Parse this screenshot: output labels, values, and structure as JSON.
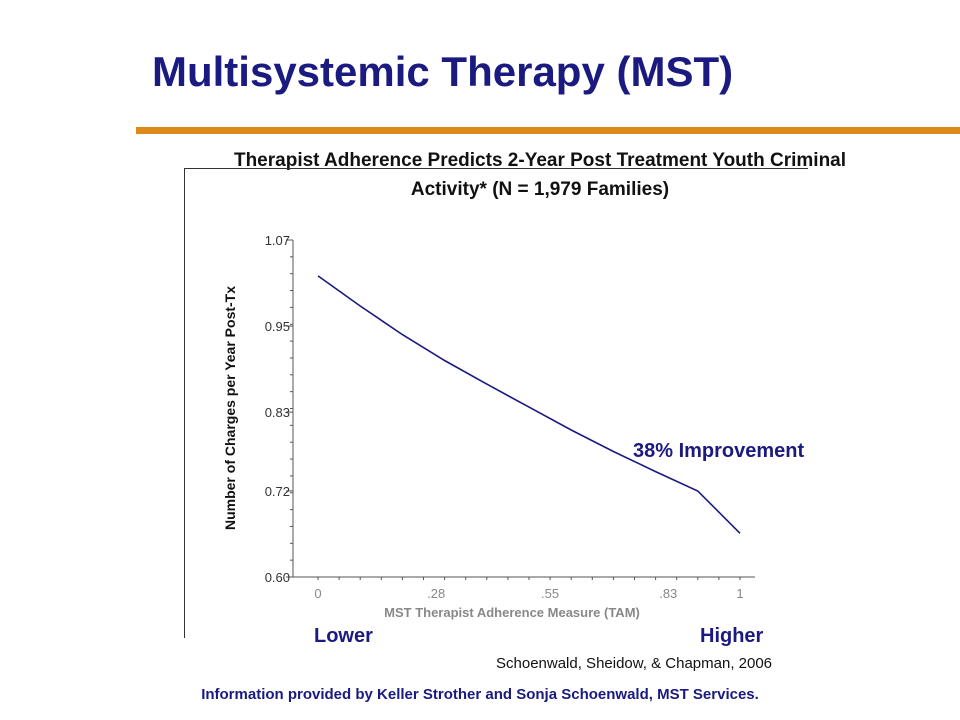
{
  "slide": {
    "title": "Multisystemic Therapy (MST)",
    "subtitle_line1": "Therapist Adherence Predicts 2-Year Post Treatment Youth Criminal",
    "subtitle_line2": "Activity* (N = 1,979 Families)",
    "annotation": "38% Improvement",
    "lower_label": "Lower",
    "higher_label": "Higher",
    "citation": "Schoenwald, Sheidow, & Chapman, 2006",
    "footer": "Information provided by Keller Strother and Sonja Schoenwald, MST Services.",
    "colors": {
      "title": "#1a1a80",
      "rule": "#dd8a1c",
      "line": "#1a1a80",
      "axis_text": "#888888"
    }
  },
  "chart_data": {
    "type": "line",
    "xlabel": "MST Therapist Adherence Measure (TAM)",
    "ylabel": "Number of Charges per Year Post-Tx",
    "xlim": [
      0,
      1
    ],
    "ylim": [
      0.6,
      1.07
    ],
    "x_ticks": [
      {
        "value": 0,
        "label": "0"
      },
      {
        "value": 0.28,
        "label": ".28"
      },
      {
        "value": 0.55,
        "label": ".55"
      },
      {
        "value": 0.83,
        "label": ".83"
      },
      {
        "value": 1,
        "label": "1"
      }
    ],
    "y_ticks": [
      {
        "value": 0.6,
        "label": "0.60"
      },
      {
        "value": 0.72,
        "label": "0.72"
      },
      {
        "value": 0.83,
        "label": "0.83"
      },
      {
        "value": 0.95,
        "label": "0.95"
      },
      {
        "value": 1.07,
        "label": "1.07"
      }
    ],
    "grid": false,
    "series": [
      {
        "x": [
          0,
          0.1,
          0.2,
          0.3,
          0.4,
          0.5,
          0.6,
          0.7,
          0.8,
          0.9,
          1.0
        ],
        "y": [
          1.02,
          0.978,
          0.938,
          0.902,
          0.869,
          0.837,
          0.805,
          0.775,
          0.747,
          0.72,
          0.661
        ]
      }
    ]
  }
}
